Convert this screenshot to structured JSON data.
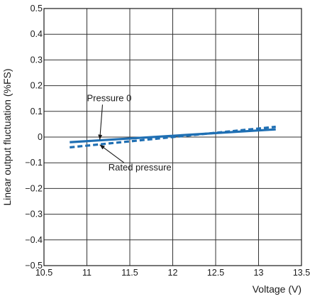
{
  "chart_data": {
    "type": "line",
    "xlabel": "Voltage (V)",
    "ylabel": "Linear output fluctuation (%FS)",
    "xlim": [
      10.5,
      13.5
    ],
    "ylim": [
      -0.5,
      0.5
    ],
    "x_ticks": [
      10.5,
      11,
      11.5,
      12,
      12.5,
      13,
      13.5
    ],
    "x_tick_labels": [
      "10.5",
      "11",
      "11.5",
      "12",
      "12.5",
      "13",
      "13.5"
    ],
    "y_ticks": [
      -0.5,
      -0.4,
      -0.3,
      -0.2,
      -0.1,
      0,
      0.1,
      0.2,
      0.3,
      0.4,
      0.5
    ],
    "y_tick_labels": [
      "−0.5",
      "−0.4",
      "−0.3",
      "−0.2",
      "−0.1",
      "0",
      "0.1",
      "0.2",
      "0.3",
      "0.4",
      "0.5"
    ],
    "grid": true,
    "series": [
      {
        "name": "Pressure 0",
        "style": "solid",
        "color": "#1f6fb3",
        "x": [
          10.8,
          13.2
        ],
        "y": [
          -0.02,
          0.03
        ]
      },
      {
        "name": "Rated pressure",
        "style": "dashed",
        "color": "#1f6fb3",
        "x": [
          10.8,
          13.2
        ],
        "y": [
          -0.04,
          0.04
        ]
      }
    ],
    "annotations": [
      {
        "text": "Pressure 0",
        "x": 11.0,
        "y": 0.14,
        "arrow_to": [
          11.15,
          -0.01
        ]
      },
      {
        "text": "Rated pressure",
        "x": 11.25,
        "y": -0.13,
        "arrow_to": [
          11.15,
          -0.03
        ]
      }
    ]
  }
}
